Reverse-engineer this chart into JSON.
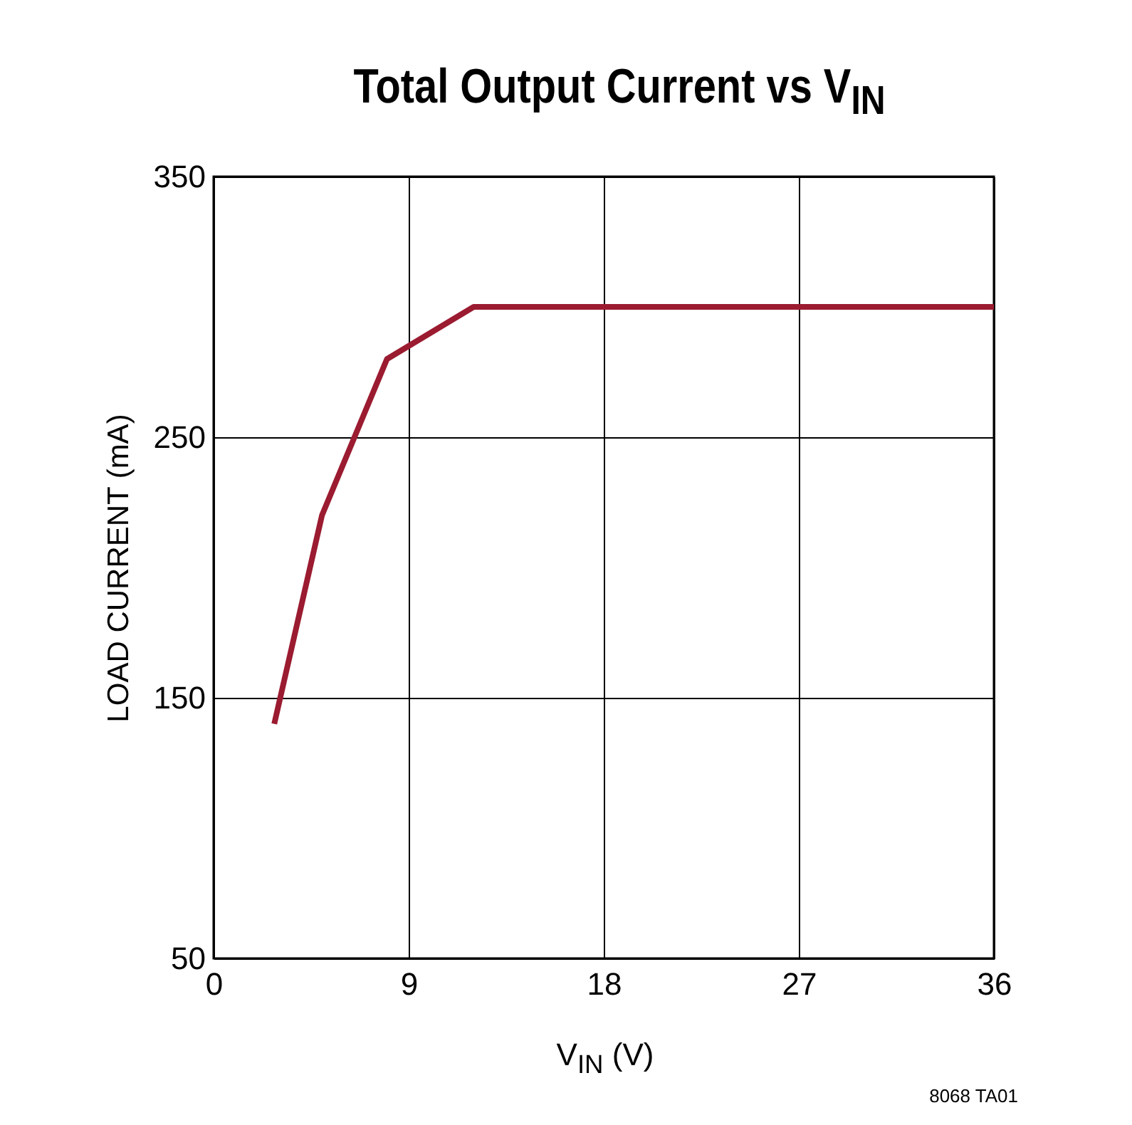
{
  "chart_data": {
    "type": "line",
    "title": "Total Output Current vs V$_{IN}$",
    "xlabel": "V$_{IN}$ (V)",
    "ylabel": "LOAD CURRENT (mA)",
    "annotations": [
      "8068 TA01"
    ],
    "x": [
      2.8,
      5,
      8,
      12,
      36
    ],
    "series": [
      {
        "color": "#9b1b30",
        "values": [
          140,
          220,
          280,
          300,
          300
        ]
      }
    ],
    "xlim": [
      0,
      36
    ],
    "xticks": [
      0,
      9,
      18,
      27,
      36
    ],
    "ylim": [
      50,
      350
    ],
    "yticks": [
      50,
      150,
      250,
      350
    ],
    "grid": true,
    "legend": false,
    "marker": "none",
    "line_style": "solid"
  }
}
